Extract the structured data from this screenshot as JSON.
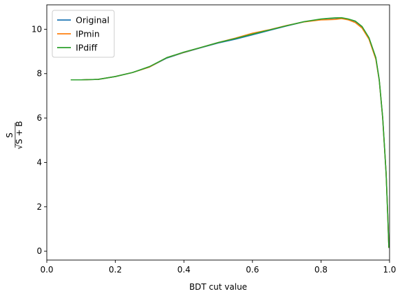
{
  "chart_data": {
    "type": "line",
    "title": "",
    "xlabel": "BDT cut value",
    "ylabel_numerator": "S",
    "ylabel_denominator": "√S + B",
    "xlim": [
      0.0,
      1.0
    ],
    "ylim": [
      -0.4,
      11.1
    ],
    "xticks": [
      "0.0",
      "0.2",
      "0.4",
      "0.6",
      "0.8",
      "1.0"
    ],
    "yticks": [
      "0",
      "2",
      "4",
      "6",
      "8",
      "10"
    ],
    "xtick_values": [
      0.0,
      0.2,
      0.4,
      0.6,
      0.8,
      1.0
    ],
    "ytick_values": [
      0,
      2,
      4,
      6,
      8,
      10
    ],
    "legend_position": "upper-left",
    "grid": false,
    "series": [
      {
        "name": "Original",
        "color": "#1f77b4",
        "x": [
          0.07,
          0.1,
          0.15,
          0.2,
          0.25,
          0.3,
          0.35,
          0.4,
          0.45,
          0.5,
          0.55,
          0.6,
          0.65,
          0.7,
          0.75,
          0.8,
          0.82,
          0.84,
          0.86,
          0.88,
          0.9,
          0.92,
          0.94,
          0.96,
          0.97,
          0.98,
          0.99,
          0.995,
          0.998
        ],
        "y": [
          7.72,
          7.72,
          7.74,
          7.87,
          8.05,
          8.3,
          8.7,
          8.95,
          9.17,
          9.38,
          9.55,
          9.75,
          9.95,
          10.15,
          10.33,
          10.45,
          10.48,
          10.5,
          10.5,
          10.45,
          10.35,
          10.1,
          9.6,
          8.7,
          7.7,
          6.0,
          3.5,
          1.5,
          0.15
        ]
      },
      {
        "name": "IPmin",
        "color": "#ff7f0e",
        "x": [
          0.07,
          0.1,
          0.15,
          0.2,
          0.25,
          0.3,
          0.35,
          0.4,
          0.45,
          0.5,
          0.55,
          0.6,
          0.65,
          0.7,
          0.75,
          0.8,
          0.82,
          0.84,
          0.86,
          0.88,
          0.9,
          0.92,
          0.94,
          0.96,
          0.97,
          0.98,
          0.99,
          0.995,
          0.998
        ],
        "y": [
          7.72,
          7.72,
          7.74,
          7.87,
          8.05,
          8.3,
          8.72,
          8.96,
          9.18,
          9.4,
          9.6,
          9.82,
          9.98,
          10.17,
          10.33,
          10.42,
          10.43,
          10.44,
          10.48,
          10.42,
          10.3,
          10.05,
          9.55,
          8.65,
          7.7,
          6.0,
          3.5,
          1.5,
          0.15
        ]
      },
      {
        "name": "IPdiff",
        "color": "#2ca02c",
        "x": [
          0.07,
          0.1,
          0.15,
          0.2,
          0.25,
          0.3,
          0.35,
          0.4,
          0.45,
          0.5,
          0.55,
          0.6,
          0.65,
          0.7,
          0.75,
          0.8,
          0.82,
          0.84,
          0.86,
          0.88,
          0.9,
          0.92,
          0.94,
          0.96,
          0.97,
          0.98,
          0.99,
          0.995,
          0.998
        ],
        "y": [
          7.72,
          7.72,
          7.74,
          7.87,
          8.05,
          8.32,
          8.72,
          8.97,
          9.18,
          9.4,
          9.58,
          9.78,
          9.97,
          10.16,
          10.34,
          10.46,
          10.49,
          10.51,
          10.52,
          10.46,
          10.37,
          10.12,
          9.62,
          8.72,
          7.72,
          6.02,
          3.5,
          1.5,
          0.15
        ]
      }
    ]
  }
}
